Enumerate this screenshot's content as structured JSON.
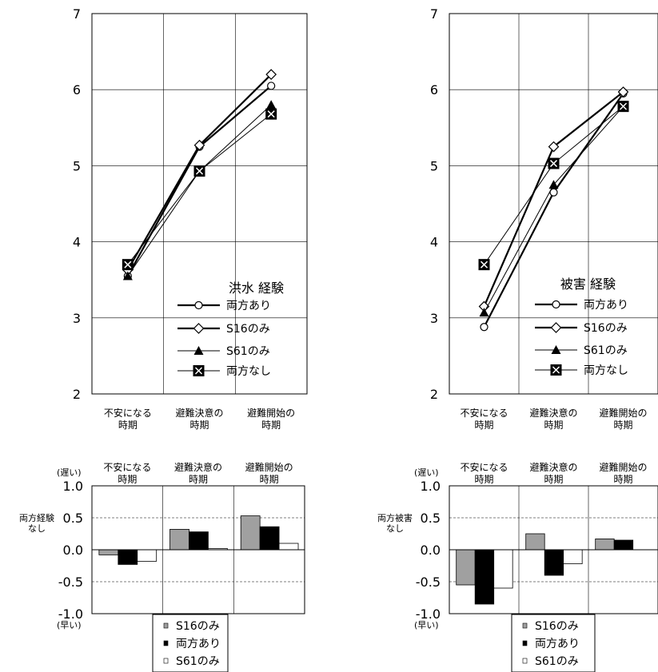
{
  "chart_data": [
    {
      "type": "line",
      "categories": [
        [
          "不安になる",
          "時期"
        ],
        [
          "避難決意の",
          "時期"
        ],
        [
          "避難開始の",
          "時期"
        ]
      ],
      "ylim": [
        2,
        7
      ],
      "yticks": [
        "2",
        "3",
        "4",
        "5",
        "6",
        "7"
      ],
      "legend_title": "洪水 経験",
      "legend_position": "bottom-right",
      "grid": true,
      "series": [
        {
          "name": "両方あり",
          "marker": "circle",
          "values": [
            3.55,
            5.25,
            6.05
          ]
        },
        {
          "name": "S16のみ",
          "marker": "diamond",
          "values": [
            3.63,
            5.27,
            6.2
          ]
        },
        {
          "name": "S61のみ",
          "marker": "triangle",
          "values": [
            3.55,
            4.93,
            5.8
          ]
        },
        {
          "name": "両方なし",
          "marker": "square-x",
          "values": [
            3.7,
            4.93,
            5.68
          ]
        }
      ]
    },
    {
      "type": "line",
      "categories": [
        [
          "不安になる",
          "時期"
        ],
        [
          "避難決意の",
          "時期"
        ],
        [
          "避難開始の",
          "時期"
        ]
      ],
      "ylim": [
        2,
        7
      ],
      "yticks": [
        "2",
        "3",
        "4",
        "5",
        "6",
        "7"
      ],
      "legend_title": "被害 経験",
      "legend_position": "bottom-right",
      "grid": true,
      "series": [
        {
          "name": "両方あり",
          "marker": "circle",
          "values": [
            2.88,
            4.65,
            5.95
          ]
        },
        {
          "name": "S16のみ",
          "marker": "diamond",
          "values": [
            3.15,
            5.25,
            5.97
          ]
        },
        {
          "name": "S61のみ",
          "marker": "triangle",
          "values": [
            3.07,
            4.75,
            5.78
          ]
        },
        {
          "name": "両方なし",
          "marker": "square-x",
          "values": [
            3.7,
            5.03,
            5.78
          ]
        }
      ]
    },
    {
      "type": "bar",
      "categories": [
        [
          "不安になる",
          "時期"
        ],
        [
          "避難決意の",
          "時期"
        ],
        [
          "避難開始の",
          "時期"
        ]
      ],
      "ylim": [
        -1.0,
        1.0
      ],
      "yticks": [
        "-1.0",
        "-0.5",
        "0.0",
        "0.5",
        "1.0"
      ],
      "ylabel": [
        "両方経験",
        "なし"
      ],
      "top_note": "(遅い)",
      "bottom_note": "(早い)",
      "legend_position": "bottom",
      "series": [
        {
          "name": "S16のみ",
          "color": "#a0a0a0",
          "values": [
            -0.08,
            0.32,
            0.53
          ]
        },
        {
          "name": "両方あり",
          "color": "#000000",
          "values": [
            -0.23,
            0.28,
            0.36
          ]
        },
        {
          "name": "S61のみ",
          "color": "#ffffff",
          "values": [
            -0.18,
            0.02,
            0.1
          ]
        }
      ]
    },
    {
      "type": "bar",
      "categories": [
        [
          "不安になる",
          "時期"
        ],
        [
          "避難決意の",
          "時期"
        ],
        [
          "避難開始の",
          "時期"
        ]
      ],
      "ylim": [
        -1.0,
        1.0
      ],
      "yticks": [
        "-1.0",
        "-0.5",
        "0.0",
        "0.5",
        "1.0"
      ],
      "ylabel": [
        "両方被害",
        "なし"
      ],
      "top_note": "(遅い)",
      "bottom_note": "(早い)",
      "legend_position": "bottom",
      "series": [
        {
          "name": "S16のみ",
          "color": "#a0a0a0",
          "values": [
            -0.55,
            0.25,
            0.17
          ]
        },
        {
          "name": "両方あり",
          "color": "#000000",
          "values": [
            -0.85,
            -0.4,
            0.15
          ]
        },
        {
          "name": "S61のみ",
          "color": "#ffffff",
          "values": [
            -0.6,
            -0.22,
            0
          ]
        }
      ]
    }
  ]
}
